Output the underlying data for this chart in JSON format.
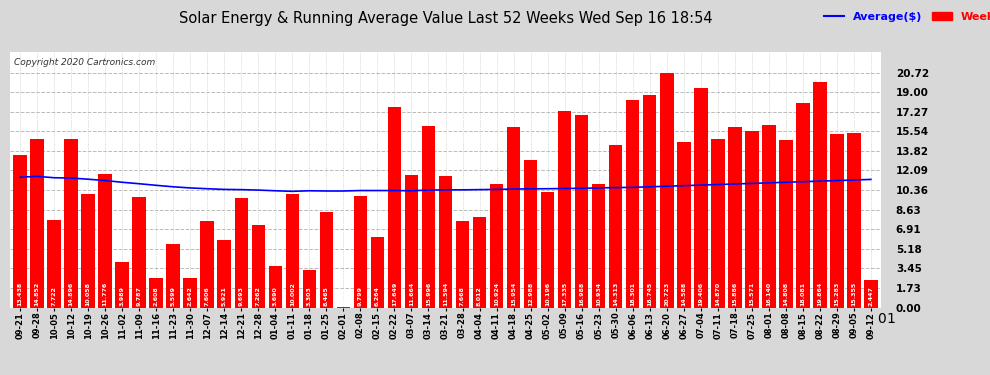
{
  "title": "Solar Energy & Running Average Value Last 52 Weeks Wed Sep 16 18:54",
  "copyright": "Copyright 2020 Cartronics.com",
  "bar_color": "#ff0000",
  "avg_line_color": "#0000ff",
  "background_color": "#d8d8d8",
  "plot_bg_color": "#ffffff",
  "grid_color": "#bbbbbb",
  "ylim": [
    0.0,
    22.5
  ],
  "yticks": [
    0.0,
    1.73,
    3.45,
    5.18,
    6.91,
    8.63,
    10.36,
    12.09,
    13.82,
    15.54,
    17.27,
    19.0,
    20.72
  ],
  "categories": [
    "09-21",
    "09-28",
    "10-05",
    "10-12",
    "10-19",
    "10-26",
    "11-02",
    "11-09",
    "11-16",
    "11-23",
    "11-30",
    "12-07",
    "12-14",
    "12-21",
    "12-28",
    "01-04",
    "01-11",
    "01-18",
    "01-25",
    "02-01",
    "02-08",
    "02-15",
    "02-22",
    "03-07",
    "03-14",
    "03-21",
    "03-28",
    "04-04",
    "04-11",
    "04-18",
    "04-25",
    "05-02",
    "05-09",
    "05-16",
    "05-23",
    "05-30",
    "06-06",
    "06-13",
    "06-20",
    "06-27",
    "07-04",
    "07-11",
    "07-18",
    "07-25",
    "08-01",
    "08-08",
    "08-15",
    "08-22",
    "08-29",
    "09-05",
    "09-12"
  ],
  "values": [
    13.438,
    14.852,
    7.722,
    14.896,
    10.058,
    11.776,
    3.989,
    9.787,
    2.608,
    5.599,
    2.642,
    7.606,
    5.921,
    9.693,
    7.262,
    3.69,
    10.002,
    3.303,
    8.465,
    0.008,
    9.799,
    6.264,
    17.649,
    11.664,
    15.996,
    11.594,
    7.668,
    8.012,
    10.924,
    15.954,
    12.988,
    10.196,
    17.335,
    16.988,
    10.934,
    14.313,
    18.301,
    18.745,
    20.723,
    14.588,
    19.406,
    14.87,
    15.886,
    15.571,
    16.14,
    14.808,
    18.081,
    19.864,
    15.283,
    15.355,
    2.447
  ],
  "avg_values": [
    11.5,
    11.57,
    11.45,
    11.42,
    11.32,
    11.2,
    11.05,
    10.92,
    10.78,
    10.65,
    10.55,
    10.48,
    10.42,
    10.4,
    10.36,
    10.3,
    10.25,
    10.3,
    10.28,
    10.28,
    10.32,
    10.32,
    10.32,
    10.3,
    10.36,
    10.38,
    10.38,
    10.4,
    10.42,
    10.45,
    10.47,
    10.48,
    10.5,
    10.52,
    10.55,
    10.58,
    10.6,
    10.65,
    10.7,
    10.75,
    10.8,
    10.85,
    10.9,
    10.95,
    11.0,
    11.05,
    11.1,
    11.15,
    11.2,
    11.25,
    11.3
  ],
  "legend_avg": "Average($)",
  "legend_weekly": "Weekly($)"
}
